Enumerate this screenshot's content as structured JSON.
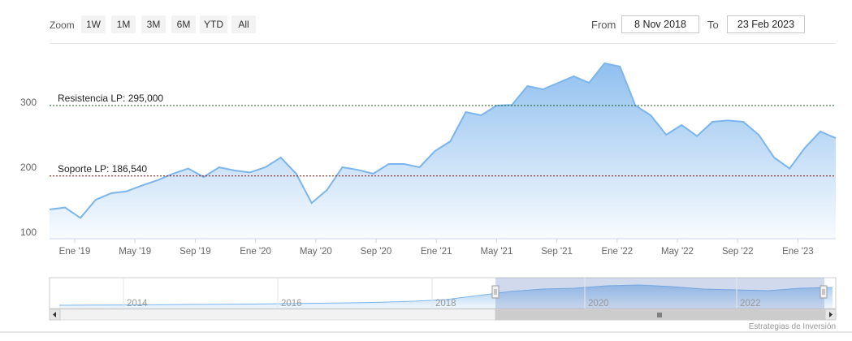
{
  "toolbar": {
    "zoom_label": "Zoom",
    "zoom_buttons": [
      "1W",
      "1M",
      "3M",
      "6M",
      "YTD",
      "All"
    ],
    "from_label": "From",
    "from_value": "8 Nov 2018",
    "to_label": "To",
    "to_value": "23 Feb 2023"
  },
  "credit": "Estrategias de Inversión",
  "colors": {
    "series": "#7cb5ec",
    "support": "#8b0000",
    "resistance": "#145a14",
    "axis": "#ccd6eb",
    "text": "#666666"
  },
  "chart_data": {
    "type": "area",
    "ylim": [
      90,
      380
    ],
    "yticks": [
      100,
      200,
      300
    ],
    "xticks": [
      "Ene '19",
      "May '19",
      "Sep '19",
      "Ene '20",
      "May '20",
      "Sep '20",
      "Ene '21",
      "May '21",
      "Sep '21",
      "Ene '22",
      "May '22",
      "Sep '22",
      "Ene '23"
    ],
    "x": [
      "Nov '18",
      "Dic '18",
      "Ene '19",
      "Feb '19",
      "Mar '19",
      "Abr '19",
      "May '19",
      "Jun '19",
      "Jul '19",
      "Ago '19",
      "Sep '19",
      "Oct '19",
      "Nov '19",
      "Dic '19",
      "Ene '20",
      "Feb '20",
      "Mar '20",
      "Abr '20",
      "May '20",
      "Jun '20",
      "Jul '20",
      "Ago '20",
      "Sep '20",
      "Oct '20",
      "Nov '20",
      "Dic '20",
      "Ene '21",
      "Feb '21",
      "Mar '21",
      "Abr '21",
      "May '21",
      "Jun '21",
      "Jul '21",
      "Ago '21",
      "Sep '21",
      "Oct '21",
      "Nov '21",
      "Dic '21",
      "Ene '22",
      "Feb '22",
      "Mar '22",
      "Abr '22",
      "May '22",
      "Jun '22",
      "Jul '22",
      "Ago '22",
      "Sep '22",
      "Oct '22",
      "Nov '22",
      "Dic '22",
      "Ene '23",
      "Feb '23"
    ],
    "values": [
      135,
      138,
      122,
      150,
      160,
      163,
      172,
      180,
      190,
      198,
      185,
      200,
      195,
      192,
      200,
      215,
      190,
      145,
      165,
      200,
      196,
      190,
      205,
      205,
      200,
      225,
      240,
      285,
      280,
      295,
      296,
      325,
      320,
      330,
      340,
      330,
      360,
      355,
      295,
      280,
      250,
      265,
      248,
      270,
      272,
      270,
      250,
      215,
      198,
      230,
      255,
      245
    ],
    "annotations": [
      {
        "label": "Resistencia LP: 295,000",
        "value": 295
      },
      {
        "label": "Soporte LP: 186,540",
        "value": 186.54
      }
    ],
    "navigator": {
      "xlabels": [
        "2014",
        "2016",
        "2018",
        "2020",
        "2022"
      ],
      "values": [
        100,
        102,
        104,
        106,
        110,
        112,
        115,
        120,
        125,
        130,
        138,
        150,
        170,
        220,
        270,
        300,
        310,
        340,
        350,
        330,
        300,
        290,
        280,
        310,
        320
      ]
    }
  }
}
